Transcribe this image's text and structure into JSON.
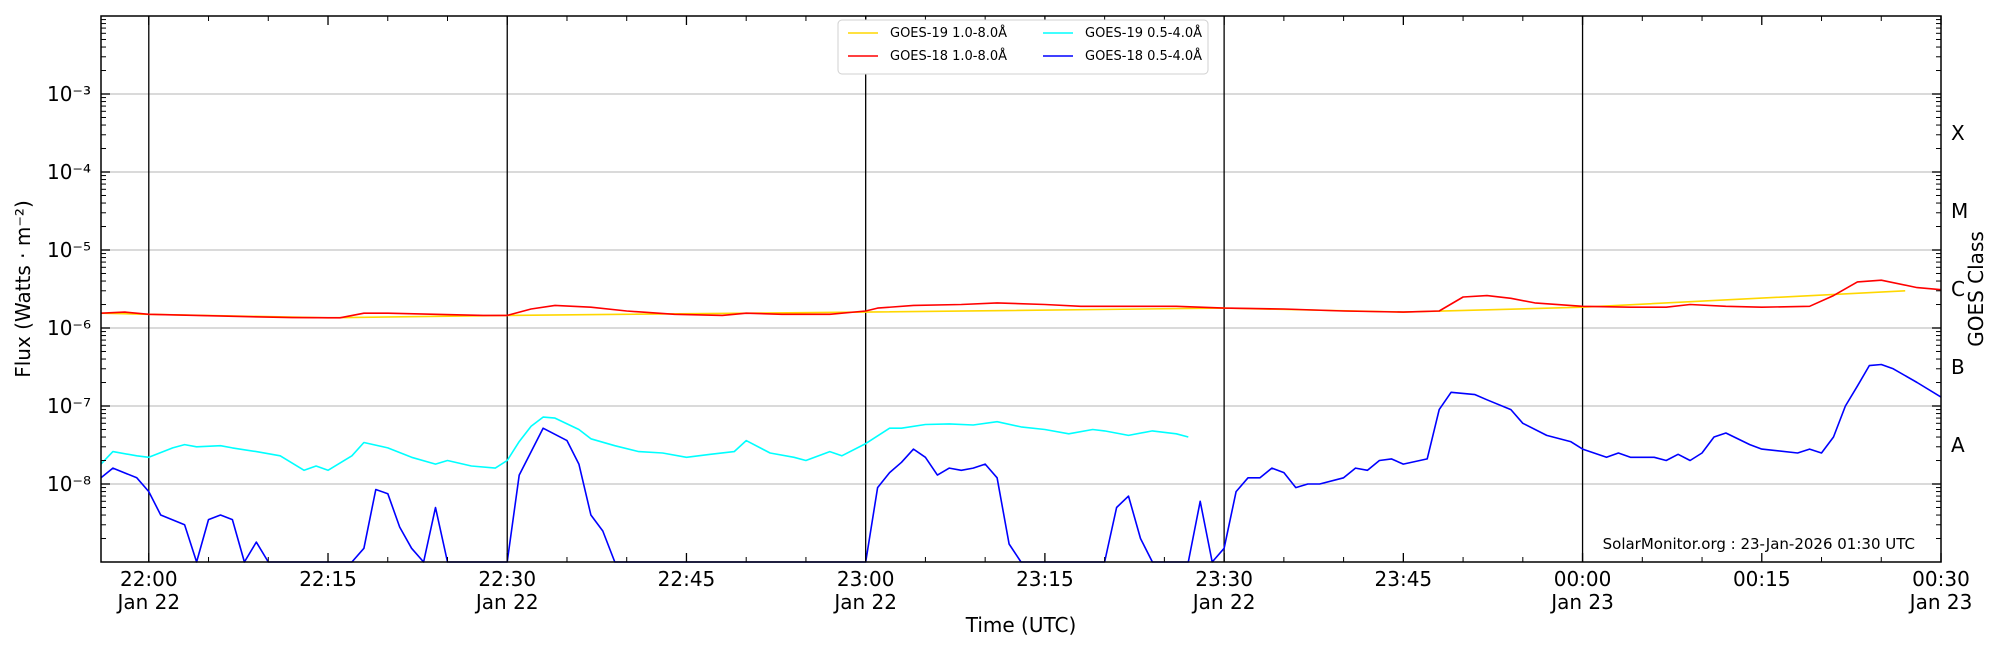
{
  "chart_data": {
    "type": "line",
    "ylabel": "Flux (Watts · m⁻²)",
    "xlabel": "Time (UTC)",
    "right_ylabel": "GOES Class",
    "y_scale": "log",
    "ylim": [
      1e-09,
      0.01
    ],
    "xlim": [
      "2026-01-22 21:56",
      "2026-01-23 00:30"
    ],
    "y_ticks": [
      {
        "value": 1e-08,
        "label": "10⁻⁸"
      },
      {
        "value": 1e-07,
        "label": "10⁻⁷"
      },
      {
        "value": 1e-06,
        "label": "10⁻⁶"
      },
      {
        "value": 1e-05,
        "label": "10⁻⁵"
      },
      {
        "value": 0.0001,
        "label": "10⁻⁴"
      },
      {
        "value": 0.001,
        "label": "10⁻³"
      }
    ],
    "x_ticks": [
      {
        "time": "22:00",
        "line1": "22:00",
        "line2": "Jan 22"
      },
      {
        "time": "22:15",
        "line1": "22:15",
        "line2": ""
      },
      {
        "time": "22:30",
        "line1": "22:30",
        "line2": "Jan 22"
      },
      {
        "time": "22:45",
        "line1": "22:45",
        "line2": ""
      },
      {
        "time": "23:00",
        "line1": "23:00",
        "line2": "Jan 22"
      },
      {
        "time": "23:15",
        "line1": "23:15",
        "line2": ""
      },
      {
        "time": "23:30",
        "line1": "23:30",
        "line2": "Jan 22"
      },
      {
        "time": "23:45",
        "line1": "23:45",
        "line2": ""
      },
      {
        "time": "00:00",
        "line1": "00:00",
        "line2": "Jan 23"
      },
      {
        "time": "00:15",
        "line1": "00:15",
        "line2": ""
      },
      {
        "time": "00:30",
        "line1": "00:30",
        "line2": "Jan 23"
      }
    ],
    "vertical_lines": [
      "22:00",
      "22:30",
      "23:00",
      "23:30",
      "00:00"
    ],
    "goes_classes": [
      {
        "label": "A",
        "value": 3.16e-08
      },
      {
        "label": "B",
        "value": 3.16e-07
      },
      {
        "label": "C",
        "value": 3.16e-06
      },
      {
        "label": "M",
        "value": 3.16e-05
      },
      {
        "label": "X",
        "value": 0.000316
      }
    ],
    "grid": true,
    "legend_position": "top-center",
    "credit": "SolarMonitor.org : 23-Jan-2026 01:30 UTC",
    "series": [
      {
        "name": "GOES-19 1.0-8.0Å",
        "color": "#ffd700",
        "points": [
          [
            "21:56",
            1.55e-06
          ],
          [
            "22:00",
            1.5e-06
          ],
          [
            "22:15",
            1.35e-06
          ],
          [
            "22:30",
            1.45e-06
          ],
          [
            "23:00",
            1.6e-06
          ],
          [
            "23:30",
            1.8e-06
          ],
          [
            "23:45",
            1.6e-06
          ],
          [
            "00:00",
            1.85e-06
          ],
          [
            "00:27",
            3e-06
          ]
        ]
      },
      {
        "name": "GOES-19 0.5-4.0Å",
        "color": "#00ffff",
        "points": [
          [
            "21:56",
            1.8e-08
          ],
          [
            "21:57",
            2.6e-08
          ],
          [
            "21:59",
            2.3e-08
          ],
          [
            "22:00",
            2.2e-08
          ],
          [
            "22:02",
            2.9e-08
          ],
          [
            "22:03",
            3.2e-08
          ],
          [
            "22:04",
            3e-08
          ],
          [
            "22:06",
            3.1e-08
          ],
          [
            "22:07",
            2.9e-08
          ],
          [
            "22:09",
            2.6e-08
          ],
          [
            "22:11",
            2.3e-08
          ],
          [
            "22:13",
            1.5e-08
          ],
          [
            "22:14",
            1.7e-08
          ],
          [
            "22:15",
            1.5e-08
          ],
          [
            "22:17",
            2.3e-08
          ],
          [
            "22:18",
            3.4e-08
          ],
          [
            "22:20",
            2.9e-08
          ],
          [
            "22:22",
            2.2e-08
          ],
          [
            "22:24",
            1.8e-08
          ],
          [
            "22:25",
            2e-08
          ],
          [
            "22:27",
            1.7e-08
          ],
          [
            "22:29",
            1.6e-08
          ],
          [
            "22:30",
            2e-08
          ],
          [
            "22:31",
            3.5e-08
          ],
          [
            "22:32",
            5.5e-08
          ],
          [
            "22:33",
            7.2e-08
          ],
          [
            "22:34",
            7e-08
          ],
          [
            "22:36",
            5e-08
          ],
          [
            "22:37",
            3.8e-08
          ],
          [
            "22:39",
            3.1e-08
          ],
          [
            "22:41",
            2.6e-08
          ],
          [
            "22:43",
            2.5e-08
          ],
          [
            "22:45",
            2.2e-08
          ],
          [
            "22:47",
            2.4e-08
          ],
          [
            "22:49",
            2.6e-08
          ],
          [
            "22:50",
            3.6e-08
          ],
          [
            "22:52",
            2.5e-08
          ],
          [
            "22:54",
            2.2e-08
          ],
          [
            "22:55",
            2e-08
          ],
          [
            "22:57",
            2.6e-08
          ],
          [
            "22:58",
            2.3e-08
          ],
          [
            "23:00",
            3.3e-08
          ],
          [
            "23:02",
            5.2e-08
          ],
          [
            "23:03",
            5.2e-08
          ],
          [
            "23:05",
            5.8e-08
          ],
          [
            "23:07",
            5.9e-08
          ],
          [
            "23:09",
            5.7e-08
          ],
          [
            "23:11",
            6.3e-08
          ],
          [
            "23:13",
            5.4e-08
          ],
          [
            "23:15",
            5e-08
          ],
          [
            "23:17",
            4.4e-08
          ],
          [
            "23:19",
            5e-08
          ],
          [
            "23:20",
            4.8e-08
          ],
          [
            "23:22",
            4.2e-08
          ],
          [
            "23:24",
            4.8e-08
          ],
          [
            "23:26",
            4.4e-08
          ],
          [
            "23:27",
            4e-08
          ]
        ]
      },
      {
        "name": "GOES-18 1.0-8.0Å",
        "color": "#ff0000",
        "points": [
          [
            "21:56",
            1.55e-06
          ],
          [
            "21:58",
            1.6e-06
          ],
          [
            "22:00",
            1.5e-06
          ],
          [
            "22:04",
            1.45e-06
          ],
          [
            "22:08",
            1.4e-06
          ],
          [
            "22:12",
            1.36e-06
          ],
          [
            "22:16",
            1.35e-06
          ],
          [
            "22:18",
            1.55e-06
          ],
          [
            "22:20",
            1.55e-06
          ],
          [
            "22:24",
            1.5e-06
          ],
          [
            "22:28",
            1.45e-06
          ],
          [
            "22:30",
            1.45e-06
          ],
          [
            "22:32",
            1.75e-06
          ],
          [
            "22:34",
            1.95e-06
          ],
          [
            "22:37",
            1.85e-06
          ],
          [
            "22:40",
            1.65e-06
          ],
          [
            "22:44",
            1.5e-06
          ],
          [
            "22:48",
            1.45e-06
          ],
          [
            "22:50",
            1.55e-06
          ],
          [
            "22:53",
            1.5e-06
          ],
          [
            "22:57",
            1.5e-06
          ],
          [
            "23:00",
            1.65e-06
          ],
          [
            "23:01",
            1.8e-06
          ],
          [
            "23:04",
            1.95e-06
          ],
          [
            "23:08",
            2e-06
          ],
          [
            "23:11",
            2.1e-06
          ],
          [
            "23:15",
            2e-06
          ],
          [
            "23:18",
            1.9e-06
          ],
          [
            "23:22",
            1.9e-06
          ],
          [
            "23:26",
            1.9e-06
          ],
          [
            "23:30",
            1.8e-06
          ],
          [
            "23:35",
            1.75e-06
          ],
          [
            "23:40",
            1.65e-06
          ],
          [
            "23:45",
            1.6e-06
          ],
          [
            "23:48",
            1.65e-06
          ],
          [
            "23:50",
            2.5e-06
          ],
          [
            "23:52",
            2.6e-06
          ],
          [
            "23:54",
            2.4e-06
          ],
          [
            "23:56",
            2.1e-06
          ],
          [
            "00:00",
            1.9e-06
          ],
          [
            "00:04",
            1.85e-06
          ],
          [
            "00:07",
            1.85e-06
          ],
          [
            "00:09",
            2e-06
          ],
          [
            "00:12",
            1.9e-06
          ],
          [
            "00:15",
            1.85e-06
          ],
          [
            "00:19",
            1.9e-06
          ],
          [
            "00:21",
            2.6e-06
          ],
          [
            "00:23",
            3.9e-06
          ],
          [
            "00:25",
            4.1e-06
          ],
          [
            "00:28",
            3.3e-06
          ],
          [
            "00:30",
            3.1e-06
          ]
        ]
      },
      {
        "name": "GOES-18 0.5-4.0Å",
        "color": "#0000ff",
        "points": [
          [
            "21:56",
            1.2e-08
          ],
          [
            "21:57",
            1.6e-08
          ],
          [
            "21:59",
            1.2e-08
          ],
          [
            "22:00",
            8e-09
          ],
          [
            "22:01",
            4e-09
          ],
          [
            "22:03",
            3e-09
          ],
          [
            "22:04",
            1e-09
          ],
          [
            "22:05",
            3.5e-09
          ],
          [
            "22:06",
            4e-09
          ],
          [
            "22:07",
            3.5e-09
          ],
          [
            "22:08",
            1e-09
          ],
          [
            "22:09",
            1.8e-09
          ],
          [
            "22:10",
            1e-09
          ],
          [
            "22:17",
            1e-09
          ],
          [
            "22:18",
            1.5e-09
          ],
          [
            "22:19",
            8.5e-09
          ],
          [
            "22:20",
            7.5e-09
          ],
          [
            "22:21",
            2.8e-09
          ],
          [
            "22:22",
            1.5e-09
          ],
          [
            "22:23",
            1e-09
          ],
          [
            "22:24",
            5e-09
          ],
          [
            "22:25",
            1e-09
          ],
          [
            "22:30",
            1e-09
          ],
          [
            "22:31",
            1.3e-08
          ],
          [
            "22:33",
            5.2e-08
          ],
          [
            "22:35",
            3.6e-08
          ],
          [
            "22:36",
            1.8e-08
          ],
          [
            "22:37",
            4e-09
          ],
          [
            "22:38",
            2.5e-09
          ],
          [
            "22:39",
            1e-09
          ],
          [
            "23:00",
            1e-09
          ],
          [
            "23:01",
            9e-09
          ],
          [
            "23:02",
            1.4e-08
          ],
          [
            "23:03",
            1.9e-08
          ],
          [
            "23:04",
            2.8e-08
          ],
          [
            "23:05",
            2.2e-08
          ],
          [
            "23:06",
            1.3e-08
          ],
          [
            "23:07",
            1.6e-08
          ],
          [
            "23:08",
            1.5e-08
          ],
          [
            "23:09",
            1.6e-08
          ],
          [
            "23:10",
            1.8e-08
          ],
          [
            "23:11",
            1.2e-08
          ],
          [
            "23:12",
            1.7e-09
          ],
          [
            "23:13",
            1e-09
          ],
          [
            "23:20",
            1e-09
          ],
          [
            "23:21",
            5e-09
          ],
          [
            "23:22",
            7e-09
          ],
          [
            "23:23",
            2e-09
          ],
          [
            "23:24",
            1e-09
          ],
          [
            "23:26",
            1e-09
          ],
          [
            "23:27",
            1e-09
          ],
          [
            "23:28",
            6e-09
          ],
          [
            "23:29",
            1e-09
          ],
          [
            "23:30",
            1.5e-09
          ],
          [
            "23:31",
            8e-09
          ],
          [
            "23:32",
            1.2e-08
          ],
          [
            "23:33",
            1.2e-08
          ],
          [
            "23:34",
            1.6e-08
          ],
          [
            "23:35",
            1.4e-08
          ],
          [
            "23:36",
            9e-09
          ],
          [
            "23:37",
            1e-08
          ],
          [
            "23:38",
            1e-08
          ],
          [
            "23:40",
            1.2e-08
          ],
          [
            "23:41",
            1.6e-08
          ],
          [
            "23:42",
            1.5e-08
          ],
          [
            "23:43",
            2e-08
          ],
          [
            "23:44",
            2.1e-08
          ],
          [
            "23:45",
            1.8e-08
          ],
          [
            "23:47",
            2.1e-08
          ],
          [
            "23:48",
            9e-08
          ],
          [
            "23:49",
            1.5e-07
          ],
          [
            "23:51",
            1.4e-07
          ],
          [
            "23:52",
            1.2e-07
          ],
          [
            "23:54",
            9e-08
          ],
          [
            "23:55",
            6e-08
          ],
          [
            "23:57",
            4.2e-08
          ],
          [
            "23:59",
            3.5e-08
          ],
          [
            "00:00",
            2.8e-08
          ],
          [
            "00:02",
            2.2e-08
          ],
          [
            "00:03",
            2.5e-08
          ],
          [
            "00:04",
            2.2e-08
          ],
          [
            "00:06",
            2.2e-08
          ],
          [
            "00:07",
            2e-08
          ],
          [
            "00:08",
            2.4e-08
          ],
          [
            "00:09",
            2e-08
          ],
          [
            "00:10",
            2.5e-08
          ],
          [
            "00:11",
            4e-08
          ],
          [
            "00:12",
            4.5e-08
          ],
          [
            "00:14",
            3.2e-08
          ],
          [
            "00:15",
            2.8e-08
          ],
          [
            "00:18",
            2.5e-08
          ],
          [
            "00:19",
            2.8e-08
          ],
          [
            "00:20",
            2.5e-08
          ],
          [
            "00:21",
            4e-08
          ],
          [
            "00:22",
            1e-07
          ],
          [
            "00:23",
            1.8e-07
          ],
          [
            "00:24",
            3.3e-07
          ],
          [
            "00:25",
            3.4e-07
          ],
          [
            "00:26",
            3e-07
          ],
          [
            "00:28",
            2e-07
          ],
          [
            "00:30",
            1.3e-07
          ]
        ]
      }
    ],
    "legend": [
      {
        "name": "GOES-19 1.0-8.0Å",
        "color": "#ffd700"
      },
      {
        "name": "GOES-19 0.5-4.0Å",
        "color": "#00ffff"
      },
      {
        "name": "GOES-18 1.0-8.0Å",
        "color": "#ff0000"
      },
      {
        "name": "GOES-18 0.5-4.0Å",
        "color": "#0000ff"
      }
    ]
  }
}
